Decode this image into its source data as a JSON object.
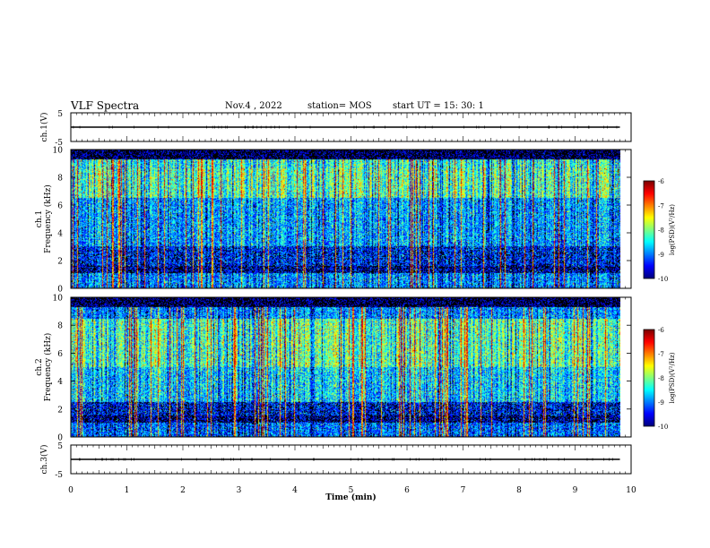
{
  "header": {
    "title": "VLF Spectra",
    "date": "Nov.4  , 2022",
    "station": "station= MOS",
    "start": "start  UT  =   15: 30: 1"
  },
  "chart_data": [
    {
      "type": "line",
      "panel": "top waveform",
      "ylabel": "ch.1(V)",
      "ylim": [
        -5,
        5
      ],
      "y_ticks": [
        "5",
        "-5"
      ],
      "value": 0
    },
    {
      "type": "heatmap",
      "panel": "ch.1 spectrogram",
      "ylabel": "ch.1\nFrequency (kHz)",
      "ylim": [
        0,
        10
      ],
      "y_ticks": [
        "0",
        "2",
        "4",
        "6",
        "8",
        "10"
      ],
      "xlim": [
        0,
        10
      ],
      "colorbar": {
        "label": "log(PSD)(V²/Hz)",
        "ticks": [
          "-6",
          "-7",
          "-8",
          "-9",
          "-10"
        ],
        "range": [
          -10,
          -6
        ]
      }
    },
    {
      "type": "heatmap",
      "panel": "ch.2 spectrogram",
      "ylabel": "ch.2\nFrequency (kHz)",
      "ylim": [
        0,
        10
      ],
      "y_ticks": [
        "0",
        "2",
        "4",
        "6",
        "8",
        "10"
      ],
      "xlim": [
        0,
        10
      ],
      "colorbar": {
        "label": "log(PSD)(V²/Hz)",
        "ticks": [
          "-6",
          "-7",
          "-8",
          "-9",
          "-10"
        ],
        "range": [
          -10,
          -6
        ]
      }
    },
    {
      "type": "line",
      "panel": "bottom waveform",
      "ylabel": "ch.3(V)",
      "ylim": [
        -5,
        5
      ],
      "y_ticks": [
        "5",
        "-5"
      ],
      "value": 0
    }
  ],
  "x_axis": {
    "label": "Time  (min)",
    "ticks": [
      "0",
      "1",
      "2",
      "3",
      "4",
      "5",
      "6",
      "7",
      "8",
      "9",
      "10"
    ],
    "range": [
      0,
      10
    ],
    "data_end": 9.8
  }
}
